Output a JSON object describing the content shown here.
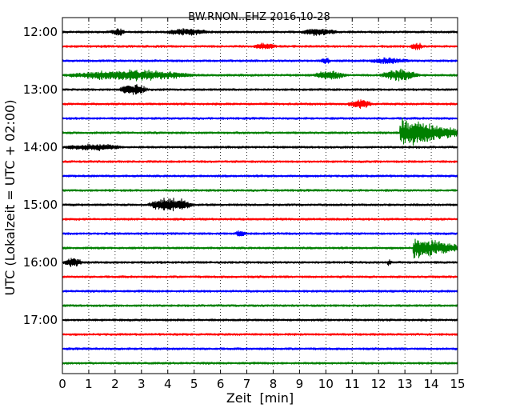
{
  "chart_data": {
    "type": "line",
    "title": "BW.RNON..EHZ 2016-10-28",
    "xlabel": "Zeit  [min]",
    "ylabel": "UTC (Lokalzeit = UTC + 02:00)",
    "xlim": [
      0,
      15
    ],
    "x_ticks": [
      "0",
      "1",
      "2",
      "3",
      "4",
      "5",
      "6",
      "7",
      "8",
      "9",
      "10",
      "11",
      "12",
      "13",
      "14",
      "15"
    ],
    "y_ticks": [
      "12:00",
      "13:00",
      "14:00",
      "15:00",
      "16:00",
      "17:00"
    ],
    "grid": "vertical dotted at each minute",
    "trace_colors": [
      "#000000",
      "#ff0000",
      "#0000ff",
      "#008000"
    ],
    "traces_start": "12:00",
    "trace_interval_min": 15,
    "trace_count": 24,
    "events": [
      {
        "trace": 0,
        "from": 1.8,
        "to": 2.4,
        "amp": 0.35
      },
      {
        "trace": 0,
        "from": 3.9,
        "to": 5.6,
        "amp": 0.35
      },
      {
        "trace": 0,
        "from": 9.0,
        "to": 10.5,
        "amp": 0.35
      },
      {
        "trace": 1,
        "from": 7.2,
        "to": 8.2,
        "amp": 0.3
      },
      {
        "trace": 1,
        "from": 13.2,
        "to": 13.7,
        "amp": 0.4
      },
      {
        "trace": 2,
        "from": 9.8,
        "to": 10.2,
        "amp": 0.35
      },
      {
        "trace": 2,
        "from": 11.6,
        "to": 13.2,
        "amp": 0.3
      },
      {
        "trace": 3,
        "from": 0.0,
        "to": 5.2,
        "amp": 0.55
      },
      {
        "trace": 3,
        "from": 9.5,
        "to": 10.8,
        "amp": 0.45
      },
      {
        "trace": 3,
        "from": 12.0,
        "to": 13.6,
        "amp": 0.6
      },
      {
        "trace": 4,
        "from": 2.1,
        "to": 3.3,
        "amp": 0.55
      },
      {
        "trace": 5,
        "from": 10.8,
        "to": 11.8,
        "amp": 0.45
      },
      {
        "trace": 7,
        "from": 12.8,
        "to": 15.0,
        "amp": 1.9
      },
      {
        "trace": 8,
        "from": 0.0,
        "to": 2.4,
        "amp": 0.3
      },
      {
        "trace": 12,
        "from": 3.2,
        "to": 5.0,
        "amp": 0.75
      },
      {
        "trace": 14,
        "from": 6.5,
        "to": 7.0,
        "amp": 0.25
      },
      {
        "trace": 15,
        "from": 13.3,
        "to": 15.0,
        "amp": 1.4
      },
      {
        "trace": 16,
        "from": 0.0,
        "to": 0.8,
        "amp": 0.45
      },
      {
        "trace": 16,
        "from": 12.3,
        "to": 12.5,
        "amp": 0.3
      }
    ]
  }
}
